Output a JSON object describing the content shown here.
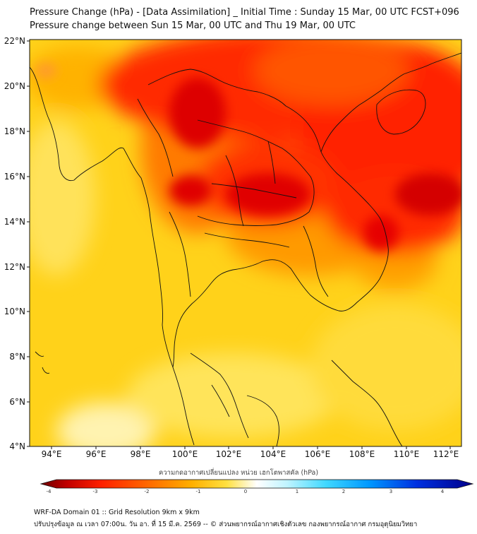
{
  "header": {
    "title_line1": "Pressure Change (hPa) - [Data Assimilation] _ Initial Time : Sunday 15 Mar, 00 UTC FCST+096",
    "title_line2": "Pressure change between Sun 15 Mar, 00 UTC and Thu 19 Mar, 00 UTC"
  },
  "map": {
    "lon_range": [
      93,
      112.5
    ],
    "lat_range": [
      4,
      22
    ],
    "lat_labels": [
      "22°N",
      "20°N",
      "18°N",
      "16°N",
      "14°N",
      "12°N",
      "10°N",
      "8°N",
      "6°N",
      "4°N"
    ],
    "lon_labels": [
      "94°E",
      "96°E",
      "98°E",
      "100°E",
      "102°E",
      "104°E",
      "106°E",
      "108°E",
      "110°E",
      "112°E"
    ],
    "field": "pressure change (hPa)",
    "colors": {
      "strong_fall": "#e80000",
      "moderate_fall": "#ff6a00",
      "slight_fall": "#ffd000",
      "near_zero": "#fff0a0",
      "rise": "#2ad0ff",
      "strong_rise": "#0010a0",
      "coastline": "#111111"
    }
  },
  "colorbar": {
    "title": "ความกดอากาศเปลี่ยนแปลง หน่วย เฮกโตพาสคัล (hPa)",
    "tick_labels": [
      "-4",
      "-3",
      "-2",
      "-1",
      "0",
      "1",
      "2",
      "3",
      "4"
    ]
  },
  "footer": {
    "line1": "WRF-DA Domain 01 :: Grid Resolution 9km x 9km",
    "line2": "ปรับปรุงข้อมูล ณ เวลา 07:00น. วัน อา. ที่ 15 มี.ค. 2569 -- © ส่วนพยากรณ์อากาศเชิงตัวเลข กองพยากรณ์อากาศ กรมอุตุนิยมวิทยา"
  }
}
